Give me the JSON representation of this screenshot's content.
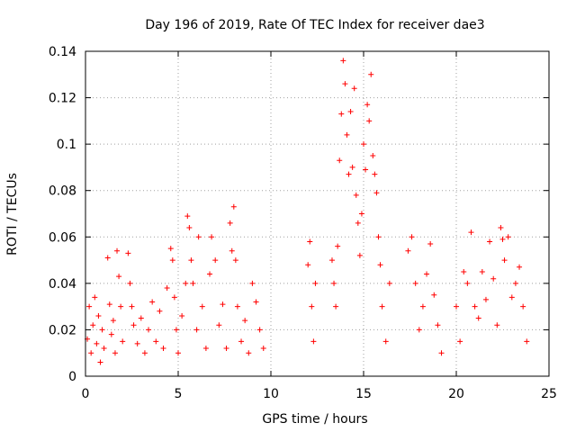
{
  "chart_data": {
    "type": "scatter",
    "title": "Day 196 of 2019, Rate Of TEC Index for receiver dae3",
    "xlabel": "GPS time / hours",
    "ylabel": "ROTI / TECUs",
    "xlim": [
      0,
      25
    ],
    "ylim": [
      0,
      0.14
    ],
    "xticks": [
      0,
      5,
      10,
      15,
      20,
      25
    ],
    "yticks": [
      0,
      0.02,
      0.04,
      0.06,
      0.08,
      0.1,
      0.12,
      0.14
    ],
    "xtick_labels": [
      "0",
      "5",
      "10",
      "15",
      "20",
      "25"
    ],
    "ytick_labels": [
      "0",
      "0.02",
      "0.04",
      "0.06",
      "0.08",
      "0.1",
      "0.12",
      "0.14"
    ],
    "grid": true,
    "marker": "+",
    "series_color": "#ff0000",
    "series": [
      {
        "name": "ROTI",
        "points": [
          [
            0.1,
            0.016
          ],
          [
            0.2,
            0.03
          ],
          [
            0.3,
            0.01
          ],
          [
            0.4,
            0.022
          ],
          [
            0.5,
            0.034
          ],
          [
            0.6,
            0.014
          ],
          [
            0.7,
            0.026
          ],
          [
            0.8,
            0.006
          ],
          [
            0.9,
            0.02
          ],
          [
            1.0,
            0.012
          ],
          [
            1.2,
            0.051
          ],
          [
            1.3,
            0.031
          ],
          [
            1.4,
            0.018
          ],
          [
            1.5,
            0.024
          ],
          [
            1.6,
            0.01
          ],
          [
            1.7,
            0.054
          ],
          [
            1.8,
            0.043
          ],
          [
            1.9,
            0.03
          ],
          [
            2.0,
            0.015
          ],
          [
            2.3,
            0.053
          ],
          [
            2.4,
            0.04
          ],
          [
            2.5,
            0.03
          ],
          [
            2.6,
            0.022
          ],
          [
            2.8,
            0.014
          ],
          [
            3.0,
            0.025
          ],
          [
            3.2,
            0.01
          ],
          [
            3.4,
            0.02
          ],
          [
            3.6,
            0.032
          ],
          [
            3.8,
            0.015
          ],
          [
            4.0,
            0.028
          ],
          [
            4.2,
            0.012
          ],
          [
            4.4,
            0.038
          ],
          [
            4.6,
            0.055
          ],
          [
            4.7,
            0.05
          ],
          [
            4.8,
            0.034
          ],
          [
            4.9,
            0.02
          ],
          [
            5.0,
            0.01
          ],
          [
            5.2,
            0.026
          ],
          [
            5.4,
            0.04
          ],
          [
            5.5,
            0.069
          ],
          [
            5.6,
            0.064
          ],
          [
            5.7,
            0.05
          ],
          [
            5.8,
            0.04
          ],
          [
            6.0,
            0.02
          ],
          [
            6.1,
            0.06
          ],
          [
            6.3,
            0.03
          ],
          [
            6.5,
            0.012
          ],
          [
            6.7,
            0.044
          ],
          [
            6.8,
            0.06
          ],
          [
            7.0,
            0.05
          ],
          [
            7.2,
            0.022
          ],
          [
            7.4,
            0.031
          ],
          [
            7.6,
            0.012
          ],
          [
            7.8,
            0.066
          ],
          [
            7.9,
            0.054
          ],
          [
            8.0,
            0.073
          ],
          [
            8.1,
            0.05
          ],
          [
            8.2,
            0.03
          ],
          [
            8.4,
            0.015
          ],
          [
            8.6,
            0.024
          ],
          [
            8.8,
            0.01
          ],
          [
            9.0,
            0.04
          ],
          [
            9.2,
            0.032
          ],
          [
            9.4,
            0.02
          ],
          [
            9.6,
            0.012
          ],
          [
            12.0,
            0.048
          ],
          [
            12.1,
            0.058
          ],
          [
            12.2,
            0.03
          ],
          [
            12.3,
            0.015
          ],
          [
            12.4,
            0.04
          ],
          [
            13.3,
            0.05
          ],
          [
            13.4,
            0.04
          ],
          [
            13.5,
            0.03
          ],
          [
            13.6,
            0.056
          ],
          [
            13.7,
            0.093
          ],
          [
            13.8,
            0.113
          ],
          [
            13.9,
            0.136
          ],
          [
            14.0,
            0.126
          ],
          [
            14.1,
            0.104
          ],
          [
            14.2,
            0.087
          ],
          [
            14.3,
            0.114
          ],
          [
            14.4,
            0.09
          ],
          [
            14.5,
            0.124
          ],
          [
            14.6,
            0.078
          ],
          [
            14.7,
            0.066
          ],
          [
            14.8,
            0.052
          ],
          [
            14.9,
            0.07
          ],
          [
            15.0,
            0.1
          ],
          [
            15.1,
            0.089
          ],
          [
            15.2,
            0.117
          ],
          [
            15.3,
            0.11
          ],
          [
            15.4,
            0.13
          ],
          [
            15.5,
            0.095
          ],
          [
            15.6,
            0.087
          ],
          [
            15.7,
            0.079
          ],
          [
            15.8,
            0.06
          ],
          [
            15.9,
            0.048
          ],
          [
            16.0,
            0.03
          ],
          [
            16.2,
            0.015
          ],
          [
            16.4,
            0.04
          ],
          [
            17.4,
            0.054
          ],
          [
            17.6,
            0.06
          ],
          [
            17.8,
            0.04
          ],
          [
            18.0,
            0.02
          ],
          [
            18.2,
            0.03
          ],
          [
            18.4,
            0.044
          ],
          [
            18.6,
            0.057
          ],
          [
            18.8,
            0.035
          ],
          [
            19.0,
            0.022
          ],
          [
            19.2,
            0.01
          ],
          [
            20.0,
            0.03
          ],
          [
            20.2,
            0.015
          ],
          [
            20.4,
            0.045
          ],
          [
            20.6,
            0.04
          ],
          [
            20.8,
            0.062
          ],
          [
            21.0,
            0.03
          ],
          [
            21.2,
            0.025
          ],
          [
            21.4,
            0.045
          ],
          [
            21.6,
            0.033
          ],
          [
            21.8,
            0.058
          ],
          [
            22.0,
            0.042
          ],
          [
            22.2,
            0.022
          ],
          [
            22.4,
            0.064
          ],
          [
            22.5,
            0.059
          ],
          [
            22.6,
            0.05
          ],
          [
            22.8,
            0.06
          ],
          [
            23.0,
            0.034
          ],
          [
            23.2,
            0.04
          ],
          [
            23.4,
            0.047
          ],
          [
            23.6,
            0.03
          ],
          [
            23.8,
            0.015
          ]
        ]
      }
    ]
  }
}
